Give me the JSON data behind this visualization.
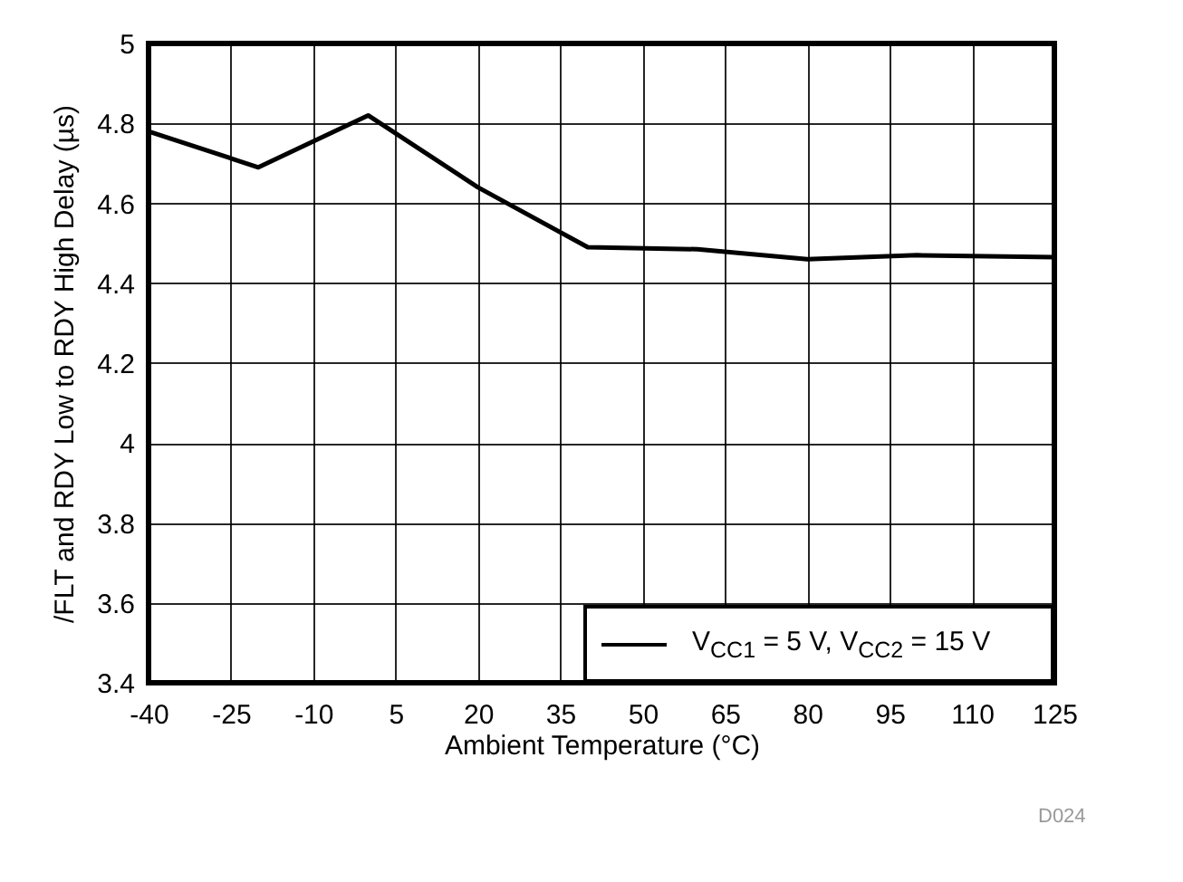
{
  "chart_data": {
    "type": "line",
    "xlabel": "Ambient Temperature (°C)",
    "ylabel": "/FLT and RDY Low to RDY High Delay (µs)",
    "x": [
      -40,
      -20,
      0,
      20,
      40,
      60,
      80,
      100,
      125
    ],
    "series": [
      {
        "name": "V$_{CC1}$ = 5 V, V$_{CC2}$ = 15 V",
        "color": "#000000",
        "values": [
          4.78,
          4.69,
          4.82,
          4.64,
          4.49,
          4.485,
          4.46,
          4.47,
          4.465
        ]
      }
    ],
    "xlim": [
      -40,
      125
    ],
    "xticks": [
      -40,
      -25,
      -10,
      5,
      20,
      35,
      50,
      65,
      80,
      95,
      110,
      125
    ],
    "ylim": [
      3.4,
      5
    ],
    "yticks": [
      3.4,
      3.6,
      3.8,
      4,
      4.2,
      4.4,
      4.6,
      4.8,
      5
    ],
    "grid": true,
    "legend": "bottom right",
    "line_style": "solid",
    "annotations": [
      "D024"
    ]
  }
}
